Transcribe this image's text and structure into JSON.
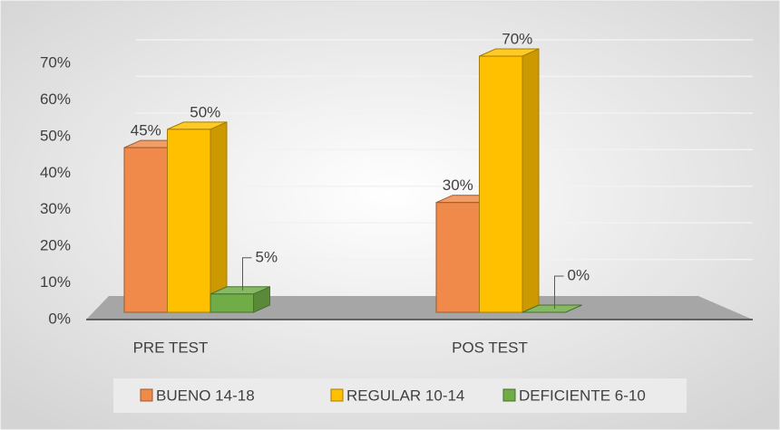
{
  "chart_data": {
    "type": "bar3d",
    "categories": [
      "PRE TEST",
      "POS TEST"
    ],
    "series": [
      {
        "name": "BUENO 14-18",
        "color": "#f08a4b",
        "values": [
          45,
          30
        ],
        "value_labels": [
          "45%",
          "30%"
        ]
      },
      {
        "name": "REGULAR 10-14",
        "color": "#ffc000",
        "values": [
          50,
          70
        ],
        "value_labels": [
          "50%",
          "70%"
        ]
      },
      {
        "name": "DEFICIENTE 6-10",
        "color": "#70ad47",
        "values": [
          5,
          0
        ],
        "value_labels": [
          "5%",
          "0%"
        ]
      }
    ],
    "ylim": [
      0,
      70
    ],
    "yticks": [
      {
        "value": 0,
        "label": "0%"
      },
      {
        "value": 10,
        "label": "10%"
      },
      {
        "value": 20,
        "label": "20%"
      },
      {
        "value": 30,
        "label": "30%"
      },
      {
        "value": 40,
        "label": "40%"
      },
      {
        "value": 50,
        "label": "50%"
      },
      {
        "value": 60,
        "label": "60%"
      },
      {
        "value": 70,
        "label": "70%"
      }
    ],
    "grid": true,
    "legend": "bottom"
  }
}
